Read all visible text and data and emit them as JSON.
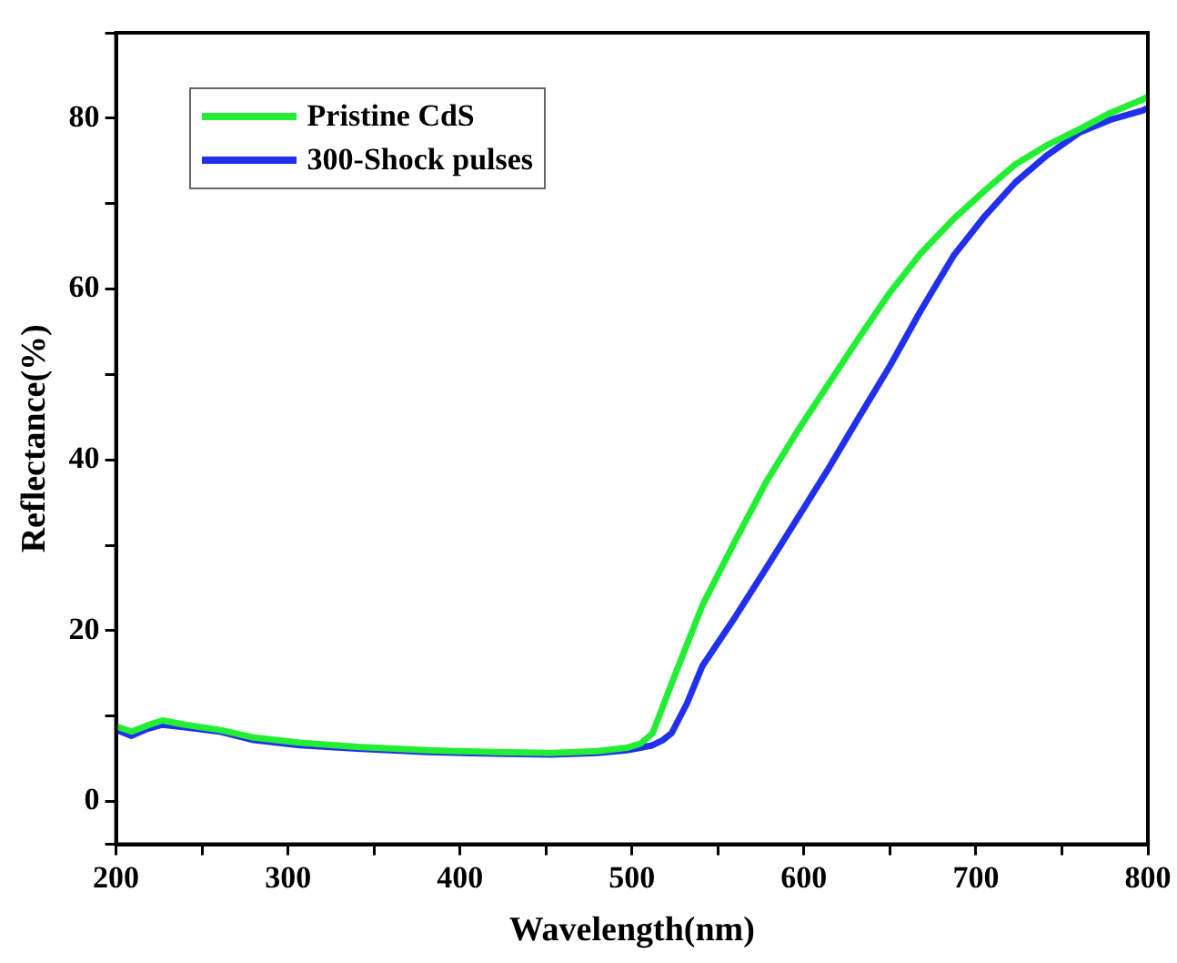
{
  "chart_data": {
    "type": "line",
    "xlabel": "Wavelength(nm)",
    "ylabel": "Reflectance(%)",
    "xlim": [
      200,
      800
    ],
    "xticks": [
      200,
      {
        "value": 250,
        "label": null
      },
      300,
      {
        "value": 350,
        "label": null
      },
      400,
      {
        "value": 450,
        "label": null
      },
      500,
      {
        "value": 550,
        "label": null
      },
      600,
      {
        "value": 650,
        "label": null
      },
      700,
      {
        "value": 750,
        "label": null
      },
      800
    ],
    "ylim": [
      -5,
      90
    ],
    "yticks": [
      {
        "value": -5,
        "label": null
      },
      0,
      {
        "value": 10,
        "label": null
      },
      20,
      {
        "value": 30,
        "label": null
      },
      40,
      {
        "value": 50,
        "label": null
      },
      60,
      {
        "value": 70,
        "label": null
      },
      80,
      {
        "value": 90,
        "label": null
      }
    ],
    "grid": false,
    "legend": "top left",
    "marker": "none",
    "line_style": "solid",
    "series": [
      {
        "name": "Pristine CdS",
        "color": "#22ee33",
        "x": [
          200,
          209,
          218,
          227,
          240,
          260,
          280,
          307,
          340,
          381,
          420,
          453,
          480,
          497,
          505,
          512,
          523,
          541,
          560,
          578,
          596,
          614,
          632,
          650,
          668,
          687,
          705,
          723,
          741,
          760,
          778,
          797,
          800
        ],
        "values": [
          8.8,
          8.2,
          8.9,
          9.5,
          9.0,
          8.4,
          7.5,
          6.9,
          6.4,
          6.0,
          5.8,
          5.7,
          5.9,
          6.3,
          6.8,
          8.0,
          13.8,
          23.0,
          30.5,
          37.4,
          43.3,
          48.8,
          54.3,
          59.6,
          64.2,
          68.2,
          71.5,
          74.6,
          76.8,
          78.7,
          80.6,
          82.2,
          82.5
        ]
      },
      {
        "name": "300-Shock pulses",
        "color": "#2030ee",
        "x": [
          200,
          209,
          218,
          227,
          240,
          260,
          280,
          307,
          340,
          381,
          420,
          453,
          480,
          497,
          505,
          512,
          518,
          523,
          532,
          541,
          560,
          578,
          596,
          614,
          632,
          650,
          668,
          687,
          705,
          723,
          741,
          760,
          778,
          797,
          800
        ],
        "values": [
          8.4,
          7.7,
          8.5,
          9.0,
          8.7,
          8.2,
          7.2,
          6.6,
          6.2,
          5.8,
          5.6,
          5.5,
          5.7,
          6.0,
          6.3,
          6.6,
          7.2,
          8.0,
          11.5,
          15.9,
          21.6,
          27.3,
          33.1,
          38.9,
          45.0,
          51.0,
          57.5,
          63.9,
          68.5,
          72.5,
          75.6,
          78.3,
          79.8,
          80.9,
          81.2
        ]
      }
    ]
  }
}
